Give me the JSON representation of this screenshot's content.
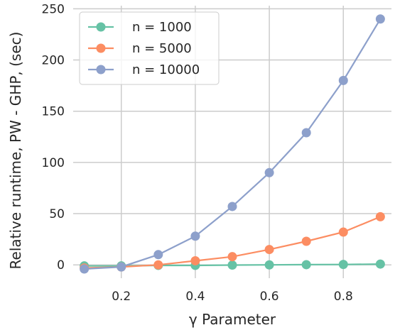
{
  "chart_data": {
    "type": "line",
    "xlabel": "γ Parameter",
    "ylabel": "Relative runtime, PW - GHP, (sec)",
    "xlim": [
      0.07,
      0.93
    ],
    "ylim": [
      -13,
      253
    ],
    "xticks": [
      0.2,
      0.4,
      0.6,
      0.8
    ],
    "xtick_labels": [
      "0.2",
      "0.4",
      "0.6",
      "0.8"
    ],
    "yticks": [
      0,
      50,
      100,
      150,
      200,
      250
    ],
    "ytick_labels": [
      "0",
      "50",
      "100",
      "150",
      "200",
      "250"
    ],
    "grid": true,
    "legend_position": "top-left",
    "x": [
      0.1,
      0.2,
      0.3,
      0.4,
      0.5,
      0.6,
      0.7,
      0.8,
      0.9
    ],
    "series": [
      {
        "name": "n = 1000",
        "color": "#66c2a5",
        "values": [
          -1,
          -1,
          -0.5,
          -0.5,
          -0.2,
          0,
          0.2,
          0.4,
          0.8
        ]
      },
      {
        "name": "n = 5000",
        "color": "#fc8d62",
        "values": [
          -3,
          -2,
          0,
          4,
          8,
          15,
          23,
          32,
          47
        ]
      },
      {
        "name": "n = 10000",
        "color": "#8da0cb",
        "values": [
          -4,
          -2,
          10,
          28,
          57,
          90,
          129,
          180,
          240
        ]
      }
    ]
  }
}
